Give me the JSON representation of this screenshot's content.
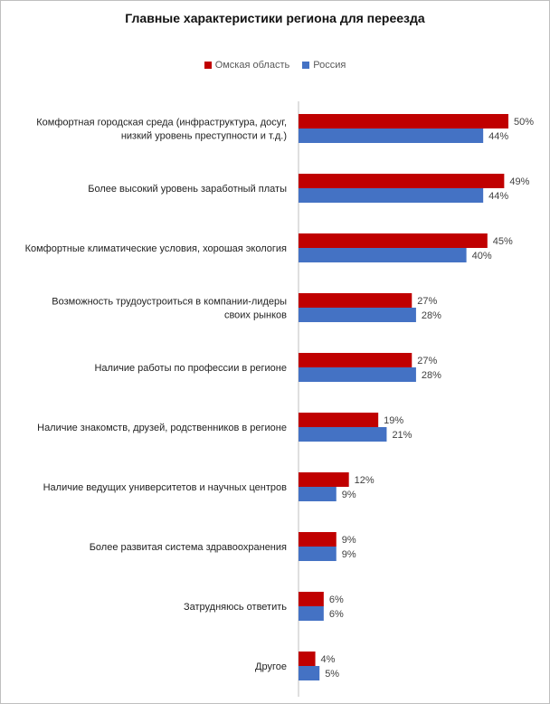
{
  "chart_data": {
    "type": "bar",
    "orientation": "horizontal",
    "title": "Главные характеристики региона для переезда",
    "legend_position": "top",
    "categories": [
      [
        "Комфортная городская среда (инфраструктура,  досуг,",
        "низкий уровень преступности и т.д.)"
      ],
      [
        "Более высокий уровень заработный платы"
      ],
      [
        "Комфортные климатические условия, хорошая экология"
      ],
      [
        "Возможность трудоустроиться в компании-лидеры",
        "своих рынков"
      ],
      [
        "Наличие работы по профессии в регионе"
      ],
      [
        "Наличие знакомств, друзей, родственников в регионе"
      ],
      [
        "Наличие ведущих университетов и научных центров"
      ],
      [
        "Более развитая система здравоохранения"
      ],
      [
        "Затрудняюсь ответить"
      ],
      [
        "Другое"
      ]
    ],
    "series": [
      {
        "name": "Омская область",
        "color": "#c00000",
        "values": [
          50,
          49,
          45,
          27,
          27,
          19,
          12,
          9,
          6,
          4
        ]
      },
      {
        "name": "Россия",
        "color": "#4472c4",
        "values": [
          44,
          44,
          40,
          28,
          28,
          21,
          9,
          9,
          6,
          5
        ]
      }
    ],
    "value_suffix": "%",
    "xlim": [
      0,
      50
    ],
    "grid": false
  }
}
